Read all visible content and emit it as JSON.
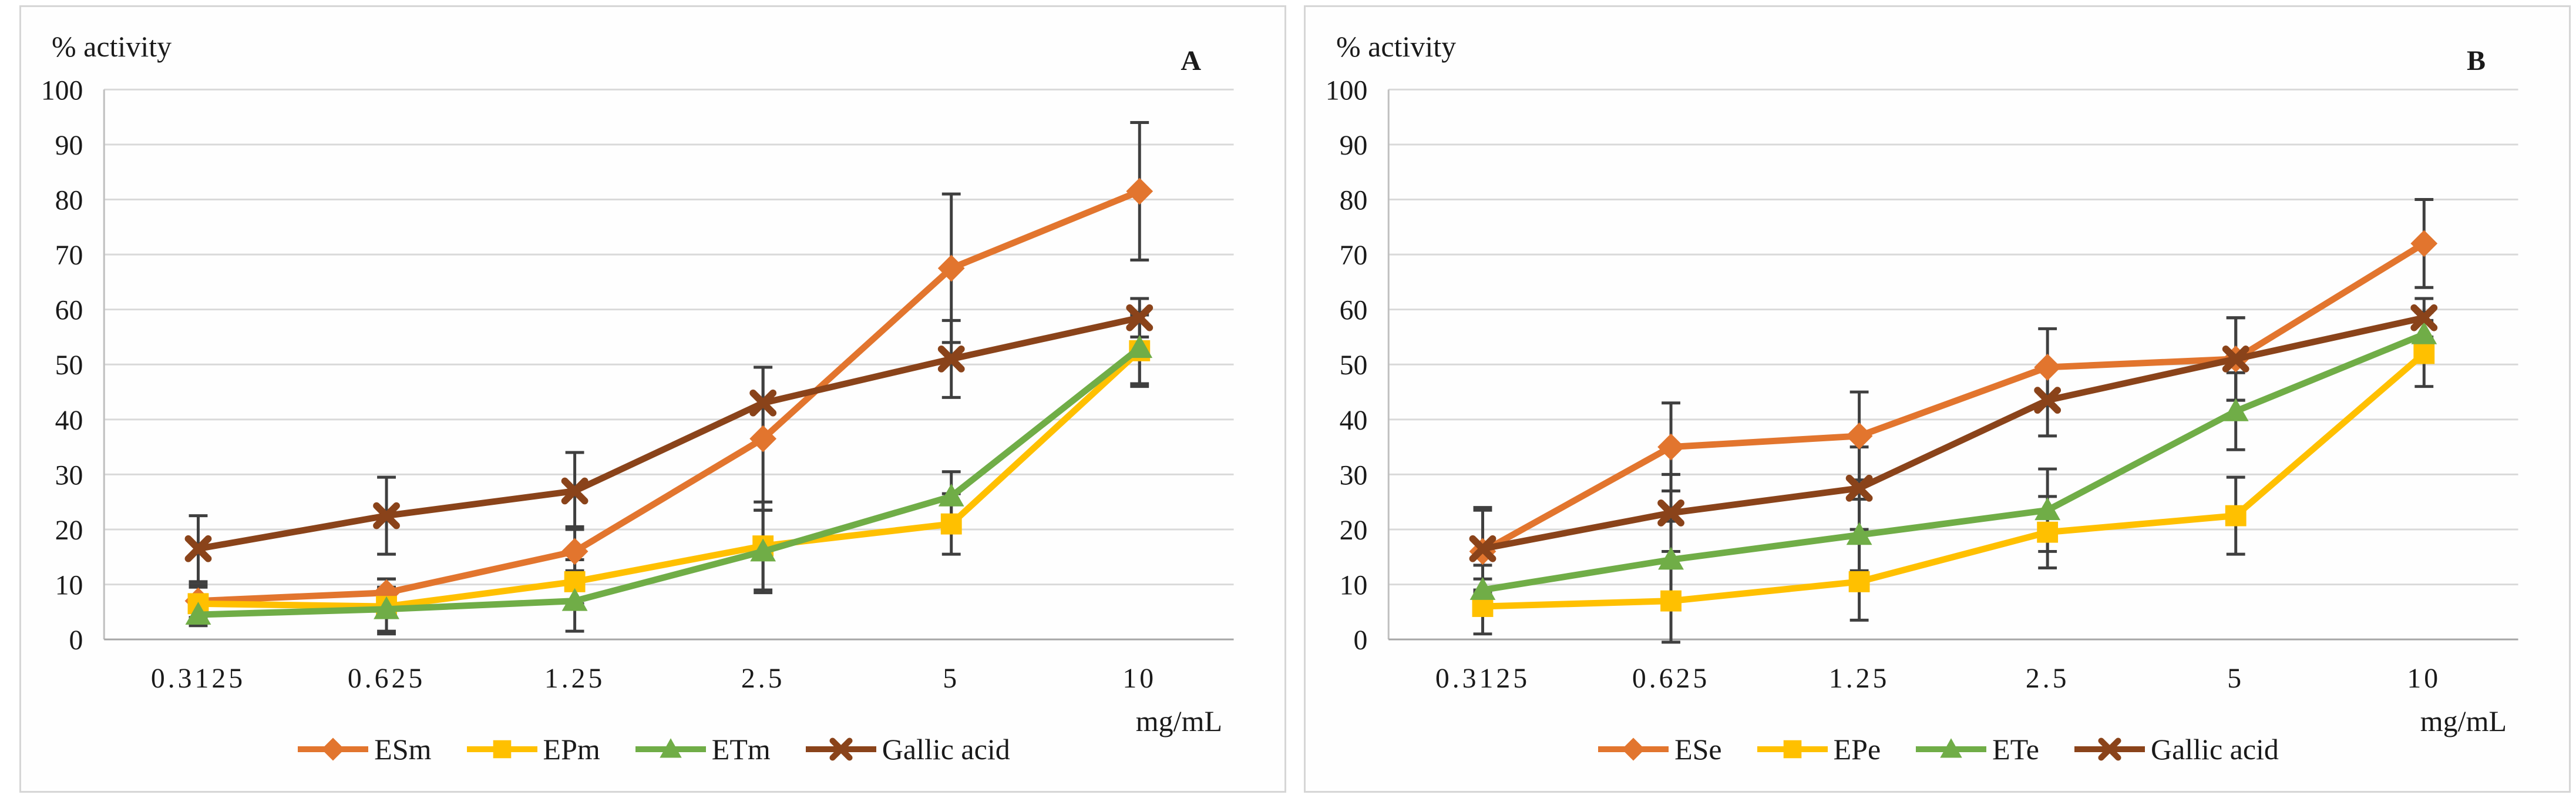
{
  "chart_data": [
    {
      "type": "line",
      "panel_label": "A",
      "title": "% activity",
      "x_unit_label": "mg/mL",
      "categories": [
        "0.3125",
        "0.625",
        "1.25",
        "2.5",
        "5",
        "10"
      ],
      "y_ticks": [
        0,
        10,
        20,
        30,
        40,
        50,
        60,
        70,
        80,
        90,
        100
      ],
      "ylim": [
        0,
        100
      ],
      "grid": true,
      "legend_position": "bottom",
      "series": [
        {
          "name": "ESm",
          "color": "#E2752E",
          "marker": "diamond",
          "values": [
            7,
            8.5,
            16,
            36.5,
            67.5,
            81.5
          ],
          "errors": [
            3,
            2.5,
            4.5,
            13,
            13.5,
            12.5
          ]
        },
        {
          "name": "EPm",
          "color": "#FFC000",
          "marker": "square",
          "values": [
            6.5,
            6,
            10.5,
            17,
            21,
            52.5
          ],
          "errors": [
            3,
            5,
            4,
            8,
            5.5,
            6.5
          ]
        },
        {
          "name": "ETm",
          "color": "#70AD47",
          "marker": "triangle",
          "values": [
            4.5,
            5.5,
            7,
            16,
            26,
            53
          ],
          "errors": [
            2,
            4,
            5.5,
            7.5,
            4.5,
            6.5
          ]
        },
        {
          "name": "Gallic acid",
          "color": "#8A431A",
          "marker": "x",
          "values": [
            16.5,
            22.5,
            27,
            43,
            51,
            58.5
          ],
          "errors": [
            6,
            7,
            7,
            6.5,
            7,
            3.5
          ]
        }
      ]
    },
    {
      "type": "line",
      "panel_label": "B",
      "title": "% activity",
      "x_unit_label": "mg/mL",
      "categories": [
        "0.3125",
        "0.625",
        "1.25",
        "2.5",
        "5",
        "10"
      ],
      "y_ticks": [
        0,
        10,
        20,
        30,
        40,
        50,
        60,
        70,
        80,
        90,
        100
      ],
      "ylim": [
        0,
        100
      ],
      "grid": true,
      "legend_position": "bottom",
      "series": [
        {
          "name": "ESe",
          "color": "#E2752E",
          "marker": "diamond",
          "values": [
            16,
            35,
            37,
            49.5,
            51,
            72
          ],
          "errors": [
            7.5,
            8,
            8,
            7,
            7.5,
            8
          ]
        },
        {
          "name": "EPe",
          "color": "#FFC000",
          "marker": "square",
          "values": [
            6,
            7,
            10.5,
            19.5,
            22.5,
            52
          ],
          "errors": [
            5,
            7.5,
            7,
            6.5,
            7,
            6
          ]
        },
        {
          "name": "ETe",
          "color": "#70AD47",
          "marker": "triangle",
          "values": [
            9,
            14.5,
            19,
            23.5,
            41.5,
            55.5
          ],
          "errors": [
            4.5,
            7,
            6.5,
            7.5,
            7,
            4
          ]
        },
        {
          "name": "Gallic acid",
          "color": "#8A431A",
          "marker": "x",
          "values": [
            16.5,
            23,
            27.5,
            43.5,
            51,
            58.5
          ],
          "errors": [
            7.5,
            7,
            7.5,
            6.5,
            7.5,
            3.5
          ]
        }
      ]
    }
  ]
}
